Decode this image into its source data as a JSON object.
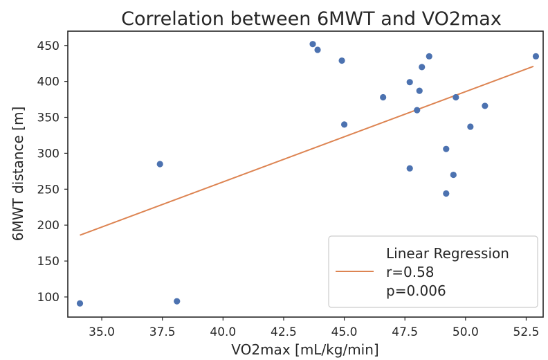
{
  "chart_data": {
    "type": "scatter",
    "title": "Correlation between 6MWT and VO2max",
    "xlabel": "VO2max [mL/kg/min]",
    "ylabel": "6MWT distance [m]",
    "xlim": [
      33.6,
      53.2
    ],
    "ylim": [
      72,
      470
    ],
    "xticks": [
      35.0,
      37.5,
      40.0,
      42.5,
      45.0,
      47.5,
      50.0,
      52.5
    ],
    "xtick_labels": [
      "35.0",
      "37.5",
      "40.0",
      "42.5",
      "45.0",
      "47.5",
      "50.0",
      "52.5"
    ],
    "yticks": [
      100,
      150,
      200,
      250,
      300,
      350,
      400,
      450
    ],
    "ytick_labels": [
      "100",
      "150",
      "200",
      "250",
      "300",
      "350",
      "400",
      "450"
    ],
    "grid": false,
    "points": [
      {
        "x": 34.1,
        "y": 91
      },
      {
        "x": 37.4,
        "y": 285
      },
      {
        "x": 38.1,
        "y": 94
      },
      {
        "x": 43.7,
        "y": 452
      },
      {
        "x": 43.9,
        "y": 444
      },
      {
        "x": 44.9,
        "y": 429
      },
      {
        "x": 45.0,
        "y": 340
      },
      {
        "x": 46.6,
        "y": 378
      },
      {
        "x": 47.7,
        "y": 399
      },
      {
        "x": 47.7,
        "y": 279
      },
      {
        "x": 48.0,
        "y": 360
      },
      {
        "x": 48.1,
        "y": 387
      },
      {
        "x": 48.2,
        "y": 420
      },
      {
        "x": 48.5,
        "y": 435
      },
      {
        "x": 49.2,
        "y": 306
      },
      {
        "x": 49.2,
        "y": 244
      },
      {
        "x": 49.5,
        "y": 270
      },
      {
        "x": 49.6,
        "y": 378
      },
      {
        "x": 50.2,
        "y": 337
      },
      {
        "x": 50.8,
        "y": 366
      },
      {
        "x": 52.9,
        "y": 435
      }
    ],
    "regression": {
      "x": [
        34.1,
        52.8
      ],
      "y": [
        186,
        421
      ]
    },
    "legend": {
      "position": "lower-right",
      "lines": [
        "Linear Regression",
        "r=0.58",
        "p=0.006"
      ]
    },
    "colors": {
      "points": "#4c72b0",
      "regression": "#dd8452",
      "axes": "#262626",
      "legend_border": "#cccccc"
    }
  }
}
